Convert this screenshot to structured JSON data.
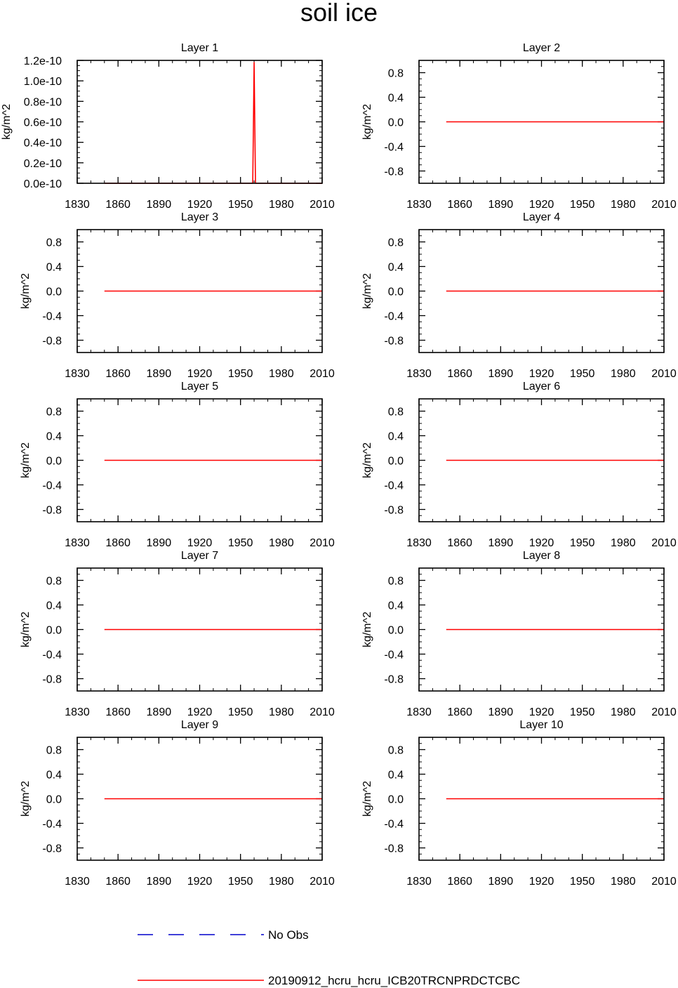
{
  "title": "soil ice",
  "colors": {
    "model_line": "#ff0000",
    "obs_line": "#0000cc",
    "axes": "#000000",
    "background": "#ffffff"
  },
  "legend": {
    "position": "bottom",
    "entries": [
      {
        "label": "No Obs",
        "style": "dashed",
        "color": "#0000cc"
      },
      {
        "label": "20190912_hcru_hcru_ICB20TRCNPRDCTCBC",
        "style": "solid",
        "color": "#ff0000"
      }
    ]
  },
  "chart_data": [
    {
      "type": "line",
      "title": "Layer 1",
      "ylabel": "kg/m^2",
      "xlim": [
        1830,
        2010
      ],
      "ylim": [
        0,
        1.2e-10
      ],
      "xticks": [
        1830,
        1860,
        1890,
        1920,
        1950,
        1980,
        2010
      ],
      "yticks": [
        0,
        2e-11,
        4e-11,
        6e-11,
        8e-11,
        1e-10,
        1.2e-10
      ],
      "ytick_labels": [
        "0.0e-10",
        "0.2e-10",
        "0.4e-10",
        "0.6e-10",
        "0.8e-10",
        "1.0e-10",
        "1.2e-10"
      ],
      "series": [
        {
          "name": "20190912_hcru_hcru_ICB20TRCNPRDCTCBC",
          "x": [
            1850,
            1959,
            1960,
            1961,
            2010
          ],
          "y": [
            0,
            0,
            1.18e-10,
            0,
            0
          ]
        }
      ]
    },
    {
      "type": "line",
      "title": "Layer 2",
      "ylabel": "kg/m^2",
      "xlim": [
        1830,
        2010
      ],
      "ylim": [
        -1,
        1
      ],
      "xticks": [
        1830,
        1860,
        1890,
        1920,
        1950,
        1980,
        2010
      ],
      "yticks": [
        -0.8,
        -0.4,
        0,
        0.4,
        0.8
      ],
      "ytick_labels": [
        "-0.8",
        "-0.4",
        "0.0",
        "0.4",
        "0.8"
      ],
      "series": [
        {
          "name": "20190912_hcru_hcru_ICB20TRCNPRDCTCBC",
          "x": [
            1850,
            2010
          ],
          "y": [
            0,
            0
          ]
        }
      ]
    },
    {
      "type": "line",
      "title": "Layer 3",
      "ylabel": "kg/m^2",
      "xlim": [
        1830,
        2010
      ],
      "ylim": [
        -1,
        1
      ],
      "xticks": [
        1830,
        1860,
        1890,
        1920,
        1950,
        1980,
        2010
      ],
      "yticks": [
        -0.8,
        -0.4,
        0,
        0.4,
        0.8
      ],
      "ytick_labels": [
        "-0.8",
        "-0.4",
        "0.0",
        "0.4",
        "0.8"
      ],
      "series": [
        {
          "name": "20190912_hcru_hcru_ICB20TRCNPRDCTCBC",
          "x": [
            1850,
            2010
          ],
          "y": [
            0,
            0
          ]
        }
      ]
    },
    {
      "type": "line",
      "title": "Layer 4",
      "ylabel": "kg/m^2",
      "xlim": [
        1830,
        2010
      ],
      "ylim": [
        -1,
        1
      ],
      "xticks": [
        1830,
        1860,
        1890,
        1920,
        1950,
        1980,
        2010
      ],
      "yticks": [
        -0.8,
        -0.4,
        0,
        0.4,
        0.8
      ],
      "ytick_labels": [
        "-0.8",
        "-0.4",
        "0.0",
        "0.4",
        "0.8"
      ],
      "series": [
        {
          "name": "20190912_hcru_hcru_ICB20TRCNPRDCTCBC",
          "x": [
            1850,
            2010
          ],
          "y": [
            0,
            0
          ]
        }
      ]
    },
    {
      "type": "line",
      "title": "Layer 5",
      "ylabel": "kg/m^2",
      "xlim": [
        1830,
        2010
      ],
      "ylim": [
        -1,
        1
      ],
      "xticks": [
        1830,
        1860,
        1890,
        1920,
        1950,
        1980,
        2010
      ],
      "yticks": [
        -0.8,
        -0.4,
        0,
        0.4,
        0.8
      ],
      "ytick_labels": [
        "-0.8",
        "-0.4",
        "0.0",
        "0.4",
        "0.8"
      ],
      "series": [
        {
          "name": "20190912_hcru_hcru_ICB20TRCNPRDCTCBC",
          "x": [
            1850,
            2010
          ],
          "y": [
            0,
            0
          ]
        }
      ]
    },
    {
      "type": "line",
      "title": "Layer 6",
      "ylabel": "kg/m^2",
      "xlim": [
        1830,
        2010
      ],
      "ylim": [
        -1,
        1
      ],
      "xticks": [
        1830,
        1860,
        1890,
        1920,
        1950,
        1980,
        2010
      ],
      "yticks": [
        -0.8,
        -0.4,
        0,
        0.4,
        0.8
      ],
      "ytick_labels": [
        "-0.8",
        "-0.4",
        "0.0",
        "0.4",
        "0.8"
      ],
      "series": [
        {
          "name": "20190912_hcru_hcru_ICB20TRCNPRDCTCBC",
          "x": [
            1850,
            2010
          ],
          "y": [
            0,
            0
          ]
        }
      ]
    },
    {
      "type": "line",
      "title": "Layer 7",
      "ylabel": "kg/m^2",
      "xlim": [
        1830,
        2010
      ],
      "ylim": [
        -1,
        1
      ],
      "xticks": [
        1830,
        1860,
        1890,
        1920,
        1950,
        1980,
        2010
      ],
      "yticks": [
        -0.8,
        -0.4,
        0,
        0.4,
        0.8
      ],
      "ytick_labels": [
        "-0.8",
        "-0.4",
        "0.0",
        "0.4",
        "0.8"
      ],
      "series": [
        {
          "name": "20190912_hcru_hcru_ICB20TRCNPRDCTCBC",
          "x": [
            1850,
            2010
          ],
          "y": [
            0,
            0
          ]
        }
      ]
    },
    {
      "type": "line",
      "title": "Layer 8",
      "ylabel": "kg/m^2",
      "xlim": [
        1830,
        2010
      ],
      "ylim": [
        -1,
        1
      ],
      "xticks": [
        1830,
        1860,
        1890,
        1920,
        1950,
        1980,
        2010
      ],
      "yticks": [
        -0.8,
        -0.4,
        0,
        0.4,
        0.8
      ],
      "ytick_labels": [
        "-0.8",
        "-0.4",
        "0.0",
        "0.4",
        "0.8"
      ],
      "series": [
        {
          "name": "20190912_hcru_hcru_ICB20TRCNPRDCTCBC",
          "x": [
            1850,
            2010
          ],
          "y": [
            0,
            0
          ]
        }
      ]
    },
    {
      "type": "line",
      "title": "Layer 9",
      "ylabel": "kg/m^2",
      "xlim": [
        1830,
        2010
      ],
      "ylim": [
        -1,
        1
      ],
      "xticks": [
        1830,
        1860,
        1890,
        1920,
        1950,
        1980,
        2010
      ],
      "yticks": [
        -0.8,
        -0.4,
        0,
        0.4,
        0.8
      ],
      "ytick_labels": [
        "-0.8",
        "-0.4",
        "0.0",
        "0.4",
        "0.8"
      ],
      "series": [
        {
          "name": "20190912_hcru_hcru_ICB20TRCNPRDCTCBC",
          "x": [
            1850,
            2010
          ],
          "y": [
            0,
            0
          ]
        }
      ]
    },
    {
      "type": "line",
      "title": "Layer 10",
      "ylabel": "kg/m^2",
      "xlim": [
        1830,
        2010
      ],
      "ylim": [
        -1,
        1
      ],
      "xticks": [
        1830,
        1860,
        1890,
        1920,
        1950,
        1980,
        2010
      ],
      "yticks": [
        -0.8,
        -0.4,
        0,
        0.4,
        0.8
      ],
      "ytick_labels": [
        "-0.8",
        "-0.4",
        "0.0",
        "0.4",
        "0.8"
      ],
      "series": [
        {
          "name": "20190912_hcru_hcru_ICB20TRCNPRDCTCBC",
          "x": [
            1850,
            2010
          ],
          "y": [
            0,
            0
          ]
        }
      ]
    }
  ]
}
